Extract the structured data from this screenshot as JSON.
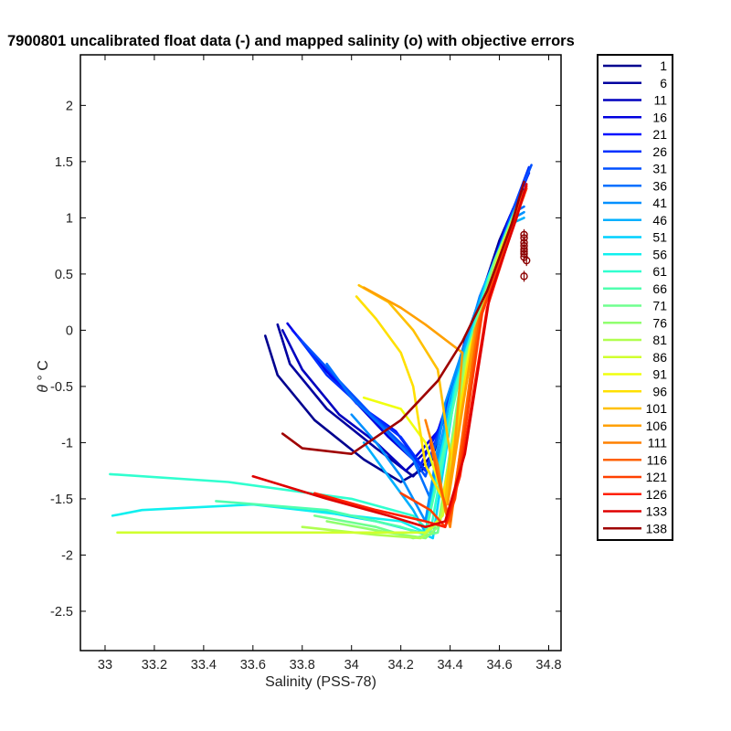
{
  "chart_data": {
    "type": "line",
    "title": "7900801 uncalibrated float data (-) and mapped salinity (o) with objective errors",
    "xlabel": "Salinity (PSS-78)",
    "ylabel_symbol": "θ",
    "ylabel_unit": "° C",
    "xlim": [
      32.9,
      34.85
    ],
    "ylim": [
      -2.85,
      2.45
    ],
    "xticks": [
      33,
      33.2,
      33.4,
      33.6,
      33.8,
      34,
      34.2,
      34.4,
      34.6,
      34.8
    ],
    "yticks": [
      2,
      1.5,
      1,
      0.5,
      0,
      -0.5,
      -1,
      -1.5,
      -2,
      -2.5
    ],
    "grid": false,
    "legend_position": "outside-right",
    "series": [
      {
        "name": "1",
        "color": "#00008f",
        "points": [
          [
            33.65,
            -0.05
          ],
          [
            33.7,
            -0.4
          ],
          [
            33.85,
            -0.8
          ],
          [
            34.05,
            -1.15
          ],
          [
            34.2,
            -1.35
          ],
          [
            34.32,
            -1.2
          ],
          [
            34.45,
            -0.2
          ],
          [
            34.6,
            0.8
          ],
          [
            34.68,
            1.2
          ]
        ]
      },
      {
        "name": "6",
        "color": "#00009f",
        "points": [
          [
            33.7,
            0.05
          ],
          [
            33.75,
            -0.3
          ],
          [
            33.9,
            -0.7
          ],
          [
            34.1,
            -1.05
          ],
          [
            34.25,
            -1.3
          ],
          [
            34.33,
            -1.1
          ],
          [
            34.46,
            -0.1
          ],
          [
            34.62,
            0.9
          ],
          [
            34.7,
            1.25
          ]
        ]
      },
      {
        "name": "11",
        "color": "#0000bf",
        "points": [
          [
            33.72,
            0.0
          ],
          [
            33.8,
            -0.35
          ],
          [
            33.95,
            -0.75
          ],
          [
            34.1,
            -1.0
          ],
          [
            34.22,
            -1.25
          ],
          [
            34.34,
            -1.0
          ],
          [
            34.48,
            0.0
          ],
          [
            34.63,
            0.95
          ],
          [
            34.7,
            1.3
          ]
        ]
      },
      {
        "name": "16",
        "color": "#0000df",
        "points": [
          [
            33.74,
            0.06
          ],
          [
            33.85,
            -0.25
          ],
          [
            34.0,
            -0.6
          ],
          [
            34.15,
            -0.95
          ],
          [
            34.25,
            -1.15
          ],
          [
            34.35,
            -0.9
          ],
          [
            34.5,
            0.1
          ],
          [
            34.64,
            1.0
          ],
          [
            34.71,
            1.35
          ]
        ]
      },
      {
        "name": "21",
        "color": "#0010ff",
        "points": [
          [
            33.76,
            0.0
          ],
          [
            33.88,
            -0.3
          ],
          [
            34.02,
            -0.65
          ],
          [
            34.18,
            -0.9
          ],
          [
            34.28,
            -1.2
          ],
          [
            34.36,
            -0.85
          ],
          [
            34.5,
            0.15
          ],
          [
            34.65,
            1.05
          ],
          [
            34.72,
            1.4
          ]
        ]
      },
      {
        "name": "26",
        "color": "#0030ff",
        "points": [
          [
            33.78,
            -0.05
          ],
          [
            33.9,
            -0.4
          ],
          [
            34.05,
            -0.7
          ],
          [
            34.2,
            -0.95
          ],
          [
            34.3,
            -1.25
          ],
          [
            34.37,
            -0.8
          ],
          [
            34.51,
            0.2
          ],
          [
            34.66,
            1.1
          ],
          [
            34.72,
            1.45
          ]
        ]
      },
      {
        "name": "31",
        "color": "#0050ff",
        "points": [
          [
            33.8,
            -0.1
          ],
          [
            33.95,
            -0.45
          ],
          [
            34.08,
            -0.75
          ],
          [
            34.22,
            -1.05
          ],
          [
            34.3,
            -1.3
          ],
          [
            34.38,
            -0.75
          ],
          [
            34.52,
            0.25
          ],
          [
            34.67,
            1.15
          ],
          [
            34.73,
            1.47
          ]
        ]
      },
      {
        "name": "36",
        "color": "#0070ff",
        "points": [
          [
            33.9,
            -0.3
          ],
          [
            34.0,
            -0.6
          ],
          [
            34.12,
            -0.85
          ],
          [
            34.25,
            -1.15
          ],
          [
            34.32,
            -1.5
          ],
          [
            34.39,
            -0.7
          ],
          [
            34.52,
            0.3
          ],
          [
            34.66,
            1.05
          ],
          [
            34.7,
            1.1
          ]
        ]
      },
      {
        "name": "41",
        "color": "#0090ff",
        "points": [
          [
            34.0,
            -0.75
          ],
          [
            34.1,
            -1.0
          ],
          [
            34.2,
            -1.3
          ],
          [
            34.3,
            -1.7
          ],
          [
            34.38,
            -0.65
          ],
          [
            34.53,
            0.35
          ],
          [
            34.66,
            1.0
          ],
          [
            34.7,
            1.05
          ]
        ]
      },
      {
        "name": "46",
        "color": "#00b0ff",
        "points": [
          [
            34.05,
            -1.0
          ],
          [
            34.15,
            -1.3
          ],
          [
            34.25,
            -1.6
          ],
          [
            34.3,
            -1.8
          ],
          [
            34.4,
            -0.6
          ],
          [
            34.54,
            0.4
          ],
          [
            34.65,
            0.95
          ],
          [
            34.7,
            1.0
          ]
        ]
      },
      {
        "name": "51",
        "color": "#00d0ff",
        "points": [
          [
            33.85,
            -1.6
          ],
          [
            34.1,
            -1.7
          ],
          [
            34.28,
            -1.8
          ],
          [
            34.33,
            -1.85
          ],
          [
            34.42,
            -0.55
          ],
          [
            34.55,
            0.45
          ],
          [
            34.65,
            1.0
          ]
        ]
      },
      {
        "name": "56",
        "color": "#10f0ef",
        "points": [
          [
            33.03,
            -1.65
          ],
          [
            33.15,
            -1.6
          ],
          [
            33.6,
            -1.55
          ],
          [
            34.2,
            -1.7
          ],
          [
            34.3,
            -1.8
          ],
          [
            34.42,
            -0.5
          ],
          [
            34.56,
            0.5
          ],
          [
            34.66,
            1.05
          ]
        ]
      },
      {
        "name": "61",
        "color": "#30ffcf",
        "points": [
          [
            33.02,
            -1.28
          ],
          [
            33.5,
            -1.35
          ],
          [
            34.0,
            -1.5
          ],
          [
            34.25,
            -1.65
          ],
          [
            34.32,
            -1.8
          ],
          [
            34.43,
            -0.45
          ],
          [
            34.57,
            0.55
          ],
          [
            34.67,
            1.1
          ]
        ]
      },
      {
        "name": "66",
        "color": "#50ffaf",
        "points": [
          [
            33.45,
            -1.52
          ],
          [
            33.9,
            -1.6
          ],
          [
            34.2,
            -1.75
          ],
          [
            34.3,
            -1.82
          ],
          [
            34.44,
            -0.4
          ],
          [
            34.58,
            0.6
          ],
          [
            34.67,
            1.1
          ]
        ]
      },
      {
        "name": "71",
        "color": "#70ff8f",
        "points": [
          [
            33.85,
            -1.65
          ],
          [
            34.1,
            -1.75
          ],
          [
            34.25,
            -1.85
          ],
          [
            34.35,
            -1.8
          ],
          [
            34.45,
            -0.35
          ],
          [
            34.58,
            0.62
          ],
          [
            34.68,
            1.12
          ]
        ]
      },
      {
        "name": "76",
        "color": "#90ff6f",
        "points": [
          [
            33.9,
            -1.7
          ],
          [
            34.15,
            -1.8
          ],
          [
            34.3,
            -1.85
          ],
          [
            34.35,
            -1.75
          ],
          [
            34.46,
            -0.3
          ],
          [
            34.59,
            0.65
          ],
          [
            34.68,
            1.13
          ]
        ]
      },
      {
        "name": "81",
        "color": "#b0ff4f",
        "points": [
          [
            33.8,
            -1.75
          ],
          [
            34.1,
            -1.82
          ],
          [
            34.28,
            -1.85
          ],
          [
            34.36,
            -1.7
          ],
          [
            34.47,
            -0.25
          ],
          [
            34.6,
            0.68
          ],
          [
            34.68,
            1.14
          ]
        ]
      },
      {
        "name": "86",
        "color": "#d0ff2f",
        "points": [
          [
            33.05,
            -1.8
          ],
          [
            33.6,
            -1.8
          ],
          [
            34.1,
            -1.8
          ],
          [
            34.3,
            -1.8
          ],
          [
            34.37,
            -1.65
          ],
          [
            34.48,
            -0.2
          ],
          [
            34.6,
            0.7
          ],
          [
            34.69,
            1.15
          ]
        ]
      },
      {
        "name": "91",
        "color": "#f0ff0f",
        "points": [
          [
            34.05,
            -0.6
          ],
          [
            34.2,
            -0.7
          ],
          [
            34.3,
            -1.0
          ],
          [
            34.36,
            -1.4
          ],
          [
            34.38,
            -1.6
          ],
          [
            34.48,
            -0.15
          ],
          [
            34.61,
            0.72
          ],
          [
            34.69,
            1.15
          ]
        ]
      },
      {
        "name": "96",
        "color": "#ffe000",
        "points": [
          [
            34.02,
            0.3
          ],
          [
            34.1,
            0.1
          ],
          [
            34.2,
            -0.2
          ],
          [
            34.25,
            -0.5
          ],
          [
            34.3,
            -1.2
          ],
          [
            34.37,
            -1.5
          ],
          [
            34.49,
            -0.1
          ],
          [
            34.62,
            0.75
          ],
          [
            34.69,
            1.18
          ]
        ]
      },
      {
        "name": "101",
        "color": "#ffc000",
        "points": [
          [
            34.03,
            0.4
          ],
          [
            34.15,
            0.25
          ],
          [
            34.25,
            0.0
          ],
          [
            34.35,
            -0.35
          ],
          [
            34.4,
            -1.1
          ],
          [
            34.38,
            -1.55
          ],
          [
            34.5,
            -0.05
          ],
          [
            34.62,
            0.78
          ],
          [
            34.7,
            1.2
          ]
        ]
      },
      {
        "name": "106",
        "color": "#ffa000",
        "points": [
          [
            34.05,
            0.38
          ],
          [
            34.2,
            0.2
          ],
          [
            34.3,
            0.05
          ],
          [
            34.45,
            -0.2
          ],
          [
            34.42,
            -1.0
          ],
          [
            34.39,
            -1.55
          ],
          [
            34.5,
            0.0
          ],
          [
            34.63,
            0.8
          ],
          [
            34.7,
            1.2
          ]
        ]
      },
      {
        "name": "111",
        "color": "#ff8000",
        "points": [
          [
            34.3,
            -0.8
          ],
          [
            34.35,
            -1.2
          ],
          [
            34.38,
            -1.6
          ],
          [
            34.4,
            -1.75
          ],
          [
            34.51,
            0.05
          ],
          [
            34.63,
            0.82
          ],
          [
            34.7,
            1.22
          ]
        ]
      },
      {
        "name": "116",
        "color": "#ff6000",
        "points": [
          [
            34.32,
            -1.0
          ],
          [
            34.36,
            -1.4
          ],
          [
            34.4,
            -1.7
          ],
          [
            34.52,
            0.1
          ],
          [
            34.64,
            0.85
          ],
          [
            34.7,
            1.24
          ]
        ]
      },
      {
        "name": "121",
        "color": "#ff4000",
        "points": [
          [
            34.2,
            -1.45
          ],
          [
            34.32,
            -1.6
          ],
          [
            34.38,
            -1.75
          ],
          [
            34.42,
            -1.5
          ],
          [
            34.53,
            0.15
          ],
          [
            34.65,
            0.9
          ],
          [
            34.71,
            1.26
          ]
        ]
      },
      {
        "name": "126",
        "color": "#ff2000",
        "points": [
          [
            33.85,
            -1.45
          ],
          [
            34.1,
            -1.6
          ],
          [
            34.3,
            -1.7
          ],
          [
            34.38,
            -1.75
          ],
          [
            34.44,
            -1.3
          ],
          [
            34.55,
            0.2
          ],
          [
            34.66,
            0.95
          ],
          [
            34.71,
            1.28
          ]
        ]
      },
      {
        "name": "133",
        "color": "#df0000",
        "points": [
          [
            33.6,
            -1.3
          ],
          [
            33.9,
            -1.5
          ],
          [
            34.15,
            -1.65
          ],
          [
            34.3,
            -1.75
          ],
          [
            34.38,
            -1.7
          ],
          [
            34.46,
            -1.1
          ],
          [
            34.56,
            0.3
          ],
          [
            34.67,
            1.0
          ],
          [
            34.71,
            1.3
          ]
        ]
      },
      {
        "name": "138",
        "color": "#9f0000",
        "points": [
          [
            33.72,
            -0.92
          ],
          [
            33.8,
            -1.05
          ],
          [
            34.0,
            -1.1
          ],
          [
            34.2,
            -0.8
          ],
          [
            34.35,
            -0.45
          ],
          [
            34.45,
            -0.1
          ],
          [
            34.55,
            0.35
          ],
          [
            34.65,
            0.95
          ],
          [
            34.7,
            1.32
          ]
        ]
      }
    ],
    "mapped_salinity_markers": {
      "color": "#8b0000",
      "points": [
        [
          34.7,
          0.85
        ],
        [
          34.7,
          0.82
        ],
        [
          34.7,
          0.78
        ],
        [
          34.7,
          0.75
        ],
        [
          34.7,
          0.72
        ],
        [
          34.7,
          0.7
        ],
        [
          34.7,
          0.68
        ],
        [
          34.7,
          0.65
        ],
        [
          34.71,
          0.62
        ],
        [
          34.7,
          0.48
        ]
      ]
    }
  }
}
